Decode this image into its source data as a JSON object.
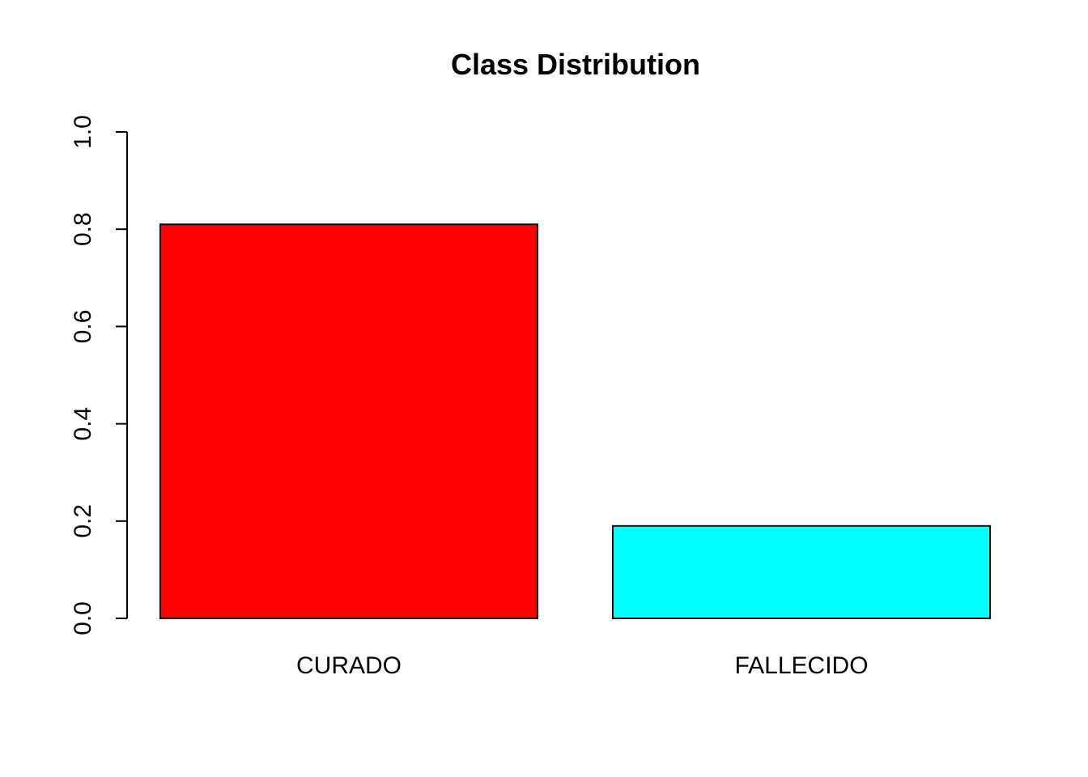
{
  "chart_data": {
    "type": "bar",
    "title": "Class Distribution",
    "xlabel": "",
    "ylabel": "",
    "categories": [
      "CURADO",
      "FALLECIDO"
    ],
    "values": [
      0.81,
      0.19
    ],
    "colors": [
      "#FF0000",
      "#00FFFF"
    ],
    "ylim": [
      0,
      1
    ],
    "yticks": [
      0.0,
      0.2,
      0.4,
      0.6,
      0.8,
      1.0
    ],
    "ytick_labels": [
      "0.0",
      "0.2",
      "0.4",
      "0.6",
      "0.8",
      "1.0"
    ],
    "grid": false,
    "legend": "none"
  }
}
